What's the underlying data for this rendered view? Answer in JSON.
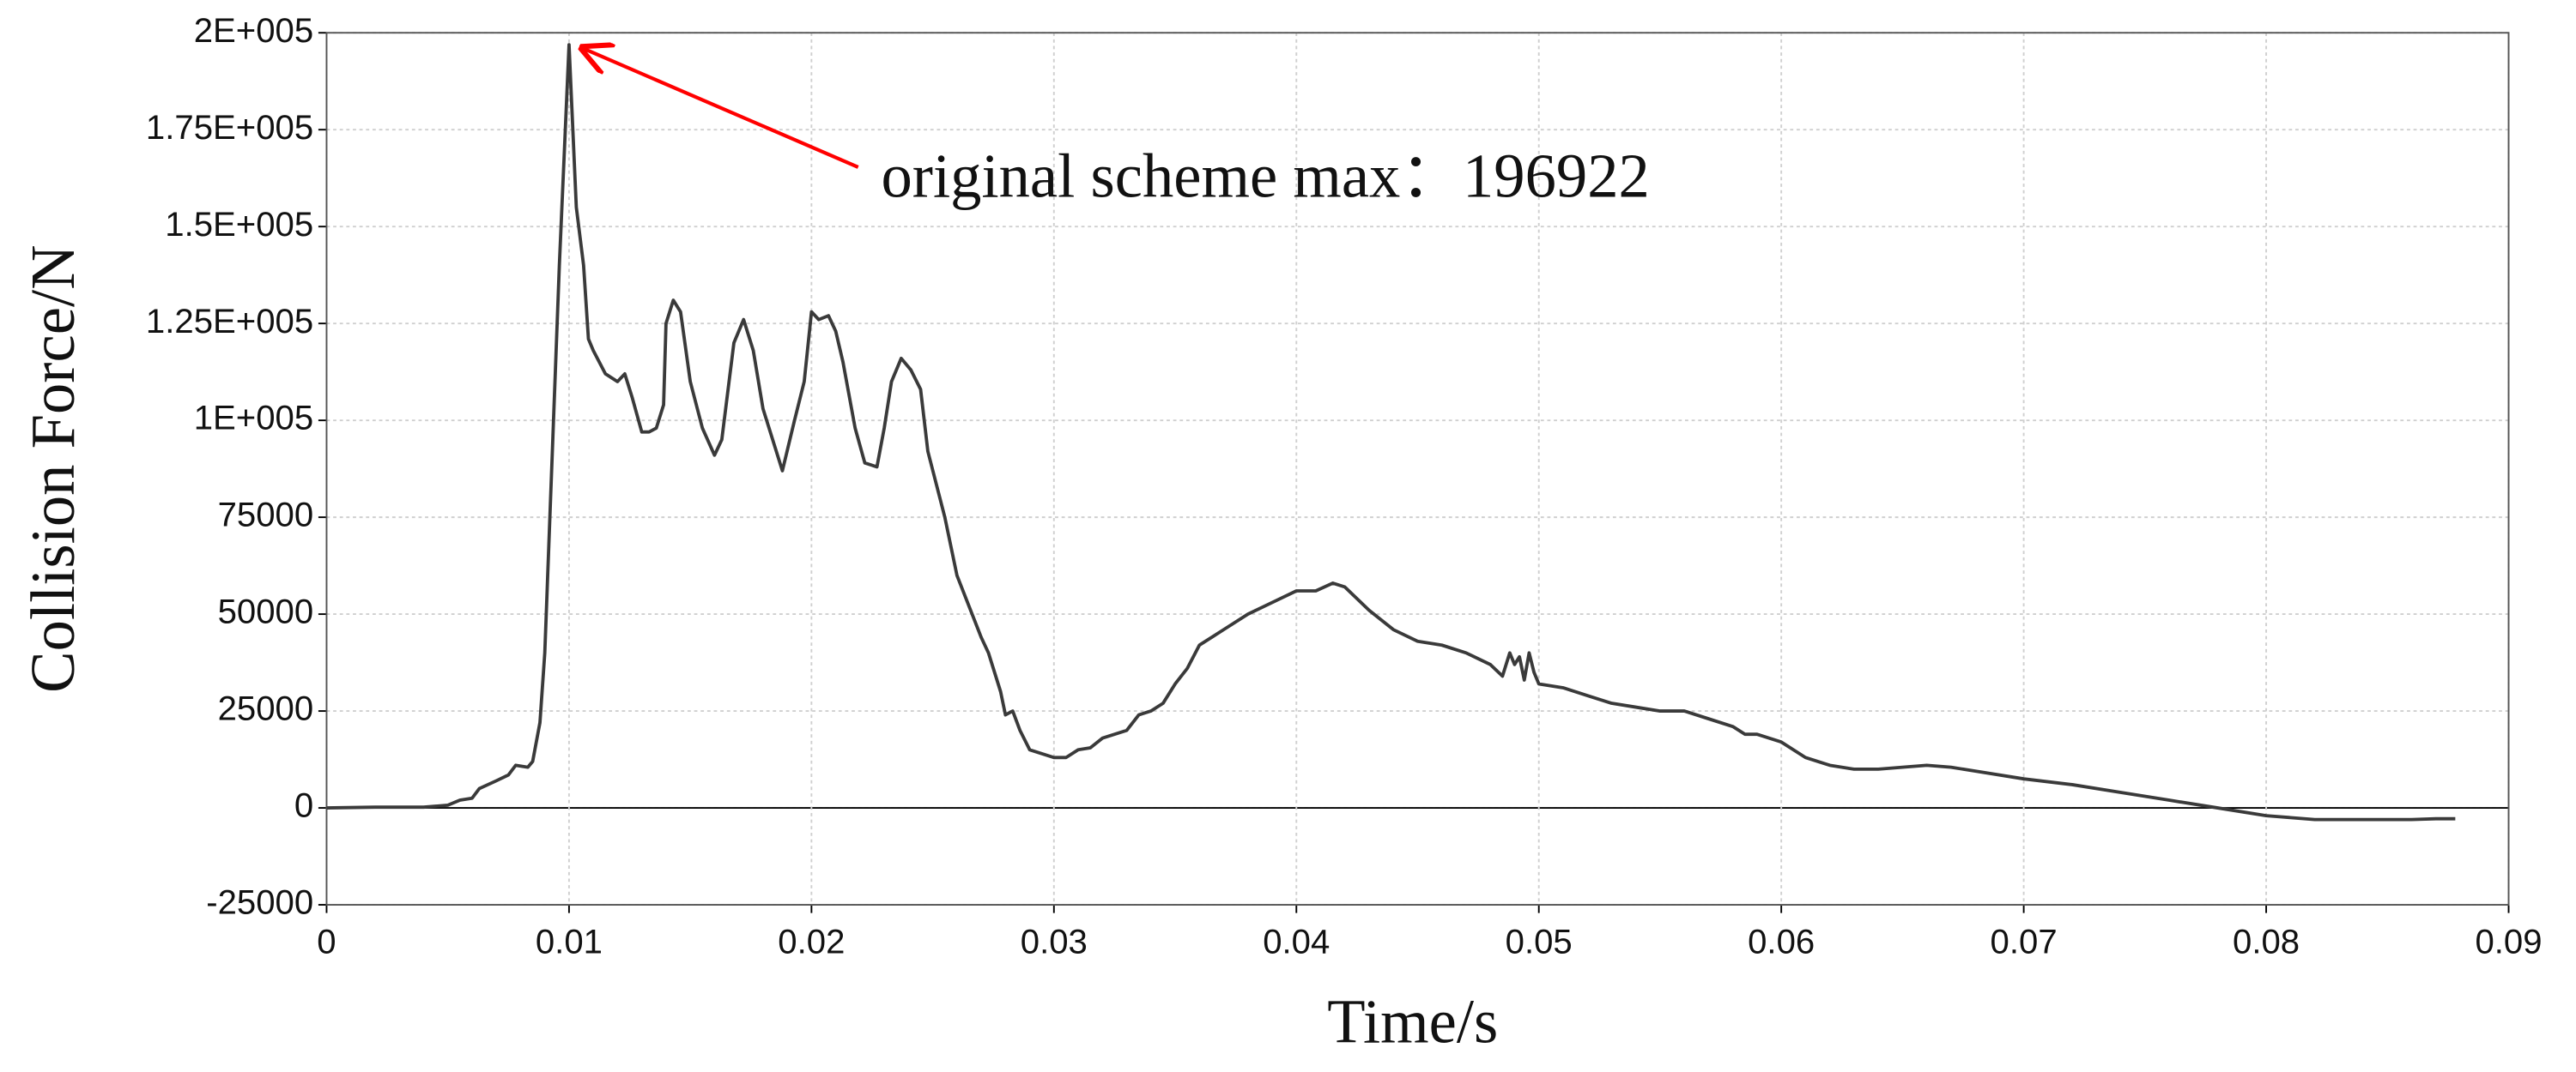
{
  "chart_data": {
    "type": "line",
    "xlabel": "Time/s",
    "ylabel": "Collision Force/N",
    "annotation": {
      "text": "original scheme max：196922",
      "x": 0.01,
      "y": 196922,
      "color": "#ff0000"
    },
    "xlim": [
      0,
      0.09
    ],
    "xticks": [
      0,
      0.01,
      0.02,
      0.03,
      0.04,
      0.05,
      0.06,
      0.07,
      0.08,
      0.09
    ],
    "ylim": [
      -25000,
      200000
    ],
    "yticks": [
      -25000,
      0,
      25000,
      50000,
      75000,
      {
        "value": 100000,
        "label": "1E+005"
      },
      {
        "value": 125000,
        "label": "1.25E+005"
      },
      {
        "value": 150000,
        "label": "1.5E+005"
      },
      {
        "value": 175000,
        "label": "1.75E+005"
      },
      {
        "value": 200000,
        "label": "2E+005"
      }
    ],
    "grid": true,
    "series": [
      {
        "color": "#3a3a3a",
        "x": [
          0,
          0.002,
          0.004,
          0.005,
          0.0055,
          0.006,
          0.0063,
          0.007,
          0.0075,
          0.0078,
          0.0083,
          0.0085,
          0.0088,
          0.009,
          0.0093,
          0.0096,
          0.01,
          0.0103,
          0.0106,
          0.0108,
          0.011,
          0.0115,
          0.012,
          0.0123,
          0.0126,
          0.013,
          0.0133,
          0.0136,
          0.0139,
          0.014,
          0.0143,
          0.0146,
          0.015,
          0.0155,
          0.016,
          0.0163,
          0.0168,
          0.0172,
          0.0176,
          0.018,
          0.0185,
          0.0188,
          0.0193,
          0.0197,
          0.02,
          0.0203,
          0.0207,
          0.021,
          0.0213,
          0.0218,
          0.0222,
          0.0227,
          0.023,
          0.0233,
          0.0237,
          0.0241,
          0.0245,
          0.0248,
          0.0255,
          0.026,
          0.0265,
          0.027,
          0.0273,
          0.0278,
          0.028,
          0.0283,
          0.0286,
          0.029,
          0.0295,
          0.03,
          0.0305,
          0.031,
          0.0315,
          0.032,
          0.0325,
          0.033,
          0.0335,
          0.034,
          0.0345,
          0.035,
          0.0355,
          0.036,
          0.0365,
          0.037,
          0.038,
          0.039,
          0.04,
          0.0408,
          0.0415,
          0.042,
          0.043,
          0.044,
          0.045,
          0.046,
          0.047,
          0.048,
          0.0485,
          0.0488,
          0.049,
          0.0492,
          0.0494,
          0.0496,
          0.0498,
          0.05,
          0.051,
          0.052,
          0.053,
          0.054,
          0.055,
          0.056,
          0.057,
          0.058,
          0.0585,
          0.059,
          0.06,
          0.061,
          0.062,
          0.063,
          0.064,
          0.065,
          0.066,
          0.067,
          0.068,
          0.07,
          0.072,
          0.074,
          0.076,
          0.078,
          0.08,
          0.081,
          0.082,
          0.084,
          0.086,
          0.087,
          0.0878
        ],
        "values": [
          0,
          200,
          200,
          700,
          2000,
          2500,
          5000,
          7000,
          8500,
          11000,
          10500,
          12000,
          22000,
          40000,
          90000,
          140000,
          196922,
          155000,
          140000,
          121000,
          118000,
          112000,
          110000,
          112000,
          106000,
          97000,
          97000,
          98000,
          104000,
          125000,
          131000,
          128000,
          110000,
          98000,
          91000,
          95000,
          120000,
          126000,
          118000,
          103000,
          93000,
          87000,
          100000,
          110000,
          128000,
          126000,
          127000,
          123000,
          115000,
          98000,
          89000,
          88000,
          98000,
          110000,
          116000,
          113000,
          108000,
          92000,
          75000,
          60000,
          52000,
          44000,
          40000,
          30000,
          24000,
          25000,
          20000,
          15000,
          14000,
          13000,
          13000,
          15000,
          15500,
          18000,
          19000,
          20000,
          24000,
          25000,
          27000,
          32000,
          36000,
          42000,
          44000,
          46000,
          50000,
          53000,
          56000,
          56000,
          58000,
          57000,
          51000,
          46000,
          43000,
          42000,
          40000,
          37000,
          34000,
          40000,
          37000,
          39000,
          33000,
          40000,
          35000,
          32000,
          31000,
          29000,
          27000,
          26000,
          25000,
          25000,
          23000,
          21000,
          19000,
          19000,
          17000,
          13000,
          11000,
          10000,
          10000,
          10500,
          11000,
          10500,
          9500,
          7500,
          6000,
          4000,
          2000,
          0,
          -2000,
          -2500,
          -3000,
          -3000,
          -3000,
          -2800,
          -2800
        ]
      }
    ]
  }
}
